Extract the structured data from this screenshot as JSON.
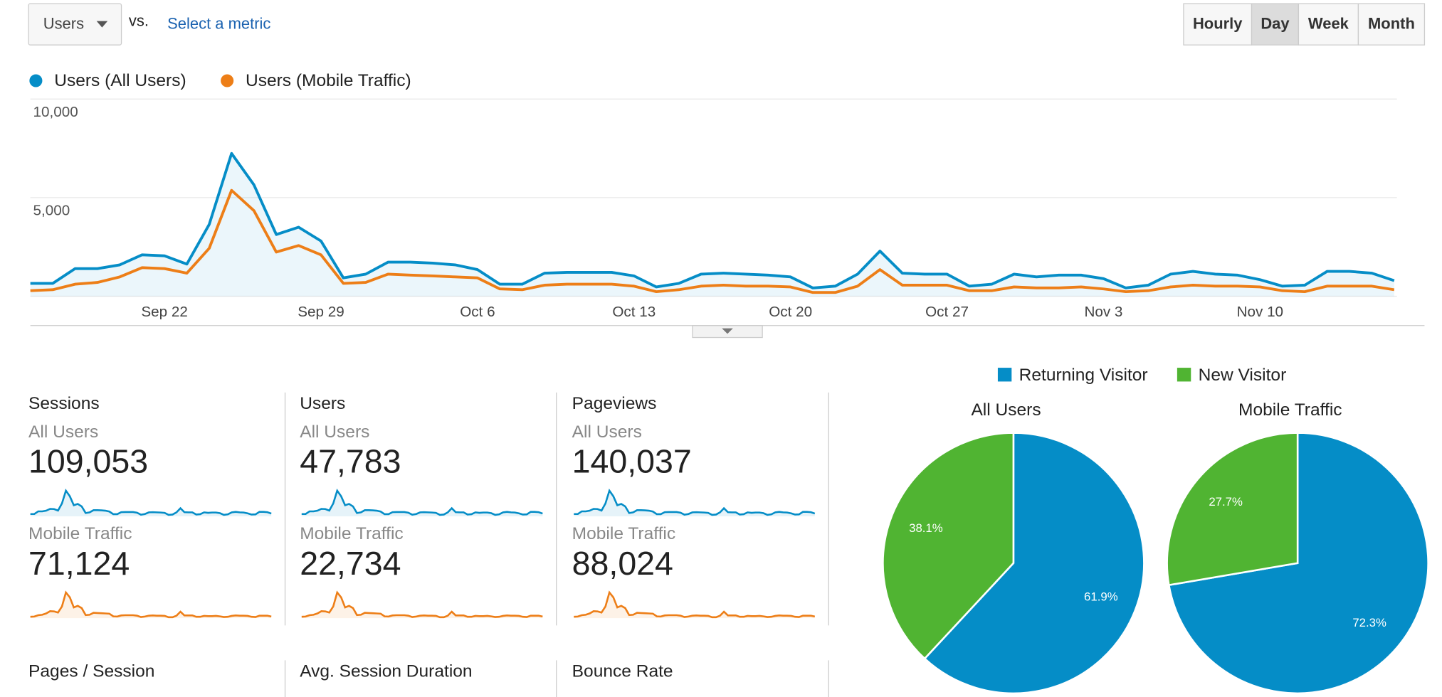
{
  "toolbar": {
    "metric": "Users",
    "vs": "vs.",
    "compare": "Select a metric",
    "intervals": [
      "Hourly",
      "Day",
      "Week",
      "Month"
    ],
    "active_interval": "Day"
  },
  "chart_data": [
    {
      "type": "line",
      "categories": [
        null,
        null,
        null,
        null,
        null,
        null,
        "Sep 22",
        null,
        null,
        null,
        null,
        null,
        null,
        "Sep 29",
        null,
        null,
        null,
        null,
        null,
        null,
        "Oct 6",
        null,
        null,
        null,
        null,
        null,
        null,
        "Oct 13",
        null,
        null,
        null,
        null,
        null,
        null,
        "Oct 20",
        null,
        null,
        null,
        null,
        null,
        null,
        "Oct 27",
        null,
        null,
        null,
        null,
        null,
        null,
        "Nov 3",
        null,
        null,
        null,
        null,
        null,
        null,
        "Nov 10",
        null,
        null,
        null,
        null,
        null,
        null
      ],
      "series": [
        {
          "name": "Users (All Users)",
          "color": "#058dc7",
          "values": [
            650,
            650,
            1400,
            1400,
            1590,
            2100,
            2050,
            1630,
            3640,
            7240,
            5650,
            3130,
            3500,
            2800,
            930,
            1120,
            1730,
            1730,
            1680,
            1590,
            1350,
            610,
            610,
            1170,
            1210,
            1210,
            1210,
            1030,
            470,
            650,
            1120,
            1170,
            1120,
            1070,
            980,
            420,
            510,
            1120,
            2290,
            1170,
            1120,
            1120,
            510,
            610,
            1120,
            980,
            1070,
            1070,
            890,
            420,
            560,
            1120,
            1260,
            1120,
            1070,
            840,
            510,
            560,
            1260,
            1260,
            1170,
            790
          ]
        },
        {
          "name": "Users (Mobile Traffic)",
          "color": "#ed7e17",
          "values": [
            280,
            330,
            610,
            700,
            980,
            1450,
            1400,
            1170,
            2430,
            5370,
            4340,
            2240,
            2570,
            2100,
            650,
            700,
            1120,
            1070,
            1030,
            980,
            930,
            370,
            330,
            560,
            610,
            610,
            610,
            510,
            230,
            330,
            510,
            560,
            510,
            510,
            470,
            190,
            190,
            510,
            1350,
            560,
            560,
            560,
            280,
            280,
            470,
            420,
            420,
            470,
            370,
            230,
            280,
            470,
            560,
            510,
            510,
            470,
            280,
            230,
            510,
            510,
            510,
            330
          ]
        }
      ],
      "ylim": [
        0,
        10000
      ],
      "yticks": [
        {
          "value": 5000,
          "label": "5,000"
        },
        {
          "value": 10000,
          "label": "10,000"
        }
      ],
      "grid": true
    },
    {
      "type": "pie",
      "title": "All Users",
      "values": [
        61.9,
        38.1
      ],
      "value_labels": [
        "61.9%",
        "38.1%"
      ]
    },
    {
      "type": "pie",
      "title": "Mobile Traffic",
      "values": [
        72.3,
        27.7
      ],
      "value_labels": [
        "72.3%",
        "27.7%"
      ]
    }
  ],
  "pie_legend": {
    "categories": [
      "Returning Visitor",
      "New Visitor"
    ],
    "colors": [
      "#058dc7",
      "#50b432"
    ]
  },
  "scorecards": [
    {
      "title": "Sessions",
      "rows": [
        {
          "segment": "All Users",
          "value": "109,053"
        },
        {
          "segment": "Mobile Traffic",
          "value": "71,124"
        }
      ]
    },
    {
      "title": "Users",
      "rows": [
        {
          "segment": "All Users",
          "value": "47,783"
        },
        {
          "segment": "Mobile Traffic",
          "value": "22,734"
        }
      ]
    },
    {
      "title": "Pageviews",
      "rows": [
        {
          "segment": "All Users",
          "value": "140,037"
        },
        {
          "segment": "Mobile Traffic",
          "value": "88,024"
        }
      ]
    }
  ],
  "more_scorecards": [
    "Pages / Session",
    "Avg. Session Duration",
    "Bounce Rate"
  ]
}
